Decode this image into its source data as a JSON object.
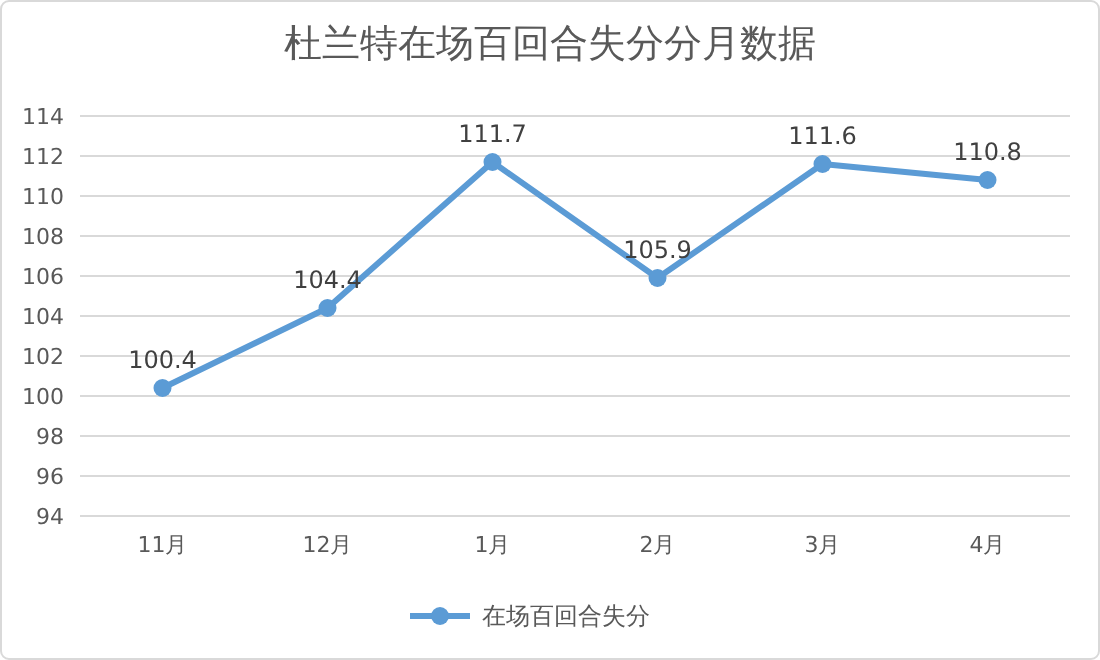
{
  "chart_data": {
    "type": "line",
    "title": "杜兰特在场百回合失分分月数据",
    "categories": [
      "11月",
      "12月",
      "1月",
      "2月",
      "3月",
      "4月"
    ],
    "series": [
      {
        "name": "在场百回合失分",
        "color": "#5b9bd5",
        "values": [
          100.4,
          104.4,
          111.7,
          105.9,
          111.6,
          110.8
        ]
      }
    ],
    "ylim": [
      94,
      114
    ],
    "yticks": [
      94,
      96,
      98,
      100,
      102,
      104,
      106,
      108,
      110,
      112,
      114
    ],
    "grid": "y",
    "legend": "bottom",
    "marker": "circle",
    "data_labels": true
  }
}
